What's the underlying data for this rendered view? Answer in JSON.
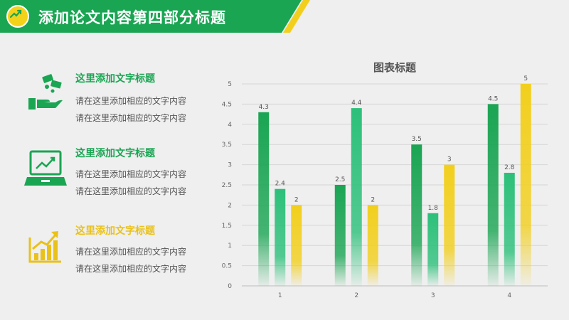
{
  "header": {
    "title": "添加论文内容第四部分标题",
    "colors": {
      "green": "#1aa553",
      "yellow": "#f2cf1d"
    }
  },
  "items": [
    {
      "title": "这里添加文字标题",
      "title_color": "#1aa553",
      "icon": "money-hand-icon",
      "lines": [
        "请在这里添加相应的文字内容",
        "请在这里添加相应的文字内容"
      ]
    },
    {
      "title": "这里添加文字标题",
      "title_color": "#1aa553",
      "icon": "laptop-chart-icon",
      "lines": [
        "请在这里添加相应的文字内容",
        "请在这里添加相应的文字内容"
      ]
    },
    {
      "title": "这里添加文字标题",
      "title_color": "#eac118",
      "icon": "growth-chart-icon",
      "lines": [
        "请在这里添加相应的文字内容",
        "请在这里添加相应的文字内容"
      ]
    }
  ],
  "chart_data": {
    "type": "bar",
    "title": "图表标题",
    "categories": [
      "1",
      "2",
      "3",
      "4"
    ],
    "series": [
      {
        "values": [
          4.3,
          2.5,
          3.5,
          4.5
        ],
        "color": "#1aa553"
      },
      {
        "values": [
          2.4,
          4.4,
          1.8,
          2.8
        ],
        "color": "#2cc07a"
      },
      {
        "values": [
          2,
          2,
          3,
          5
        ],
        "color": "#f2cf1d"
      }
    ],
    "ylim": [
      0,
      5
    ],
    "yticks": [
      "0",
      "0.5",
      "1",
      "1.5",
      "2",
      "2.5",
      "3",
      "3.5",
      "4",
      "4.5",
      "5"
    ],
    "grid": true,
    "data_labels": [
      [
        "4.3",
        "2.5",
        "3.5",
        "4.5"
      ],
      [
        "2.4",
        "4.4",
        "1.8",
        "2.8"
      ],
      [
        "2",
        "2",
        "3",
        "5"
      ]
    ]
  }
}
